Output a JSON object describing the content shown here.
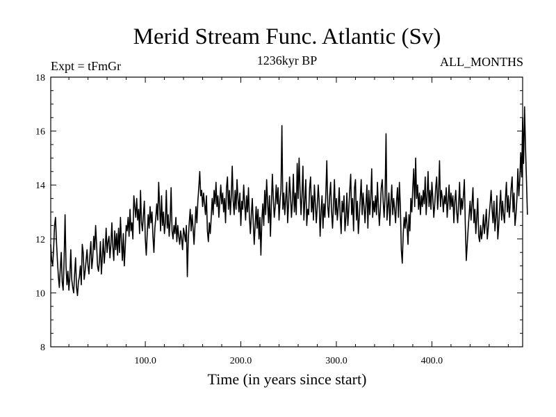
{
  "chart_data": {
    "type": "line",
    "title": "Merid Stream Func. Atlantic (Sv)",
    "subtitle_left": "Expt = tFmGr",
    "subtitle_center": "1236kyr BP",
    "subtitle_right": "ALL_MONTHS",
    "xlabel": "Time (in years since start)",
    "ylabel": "",
    "xlim": [
      1,
      495
    ],
    "ylim": [
      8,
      18
    ],
    "x_ticks": [
      {
        "value": 100,
        "label": "100.0"
      },
      {
        "value": 200,
        "label": "200.0"
      },
      {
        "value": 300,
        "label": "300.0"
      },
      {
        "value": 400,
        "label": "400.0"
      }
    ],
    "y_ticks": [
      {
        "value": 8,
        "label": "8"
      },
      {
        "value": 10,
        "label": "10"
      },
      {
        "value": 12,
        "label": "12"
      },
      {
        "value": 14,
        "label": "14"
      },
      {
        "value": 16,
        "label": "16"
      },
      {
        "value": 18,
        "label": "18"
      }
    ],
    "series": [
      {
        "name": "Merid Stream Func. Atlantic",
        "color": "#000000",
        "x_start": 1,
        "x_step": 1,
        "values": [
          11.8,
          11.2,
          11.0,
          11.6,
          12.5,
          12.8,
          11.9,
          11.2,
          10.6,
          10.2,
          10.9,
          11.5,
          10.4,
          10.1,
          11.2,
          12.9,
          11.0,
          10.3,
          10.8,
          10.1,
          10.6,
          11.6,
          10.5,
          10.2,
          10.0,
          10.7,
          11.3,
          10.2,
          9.9,
          10.4,
          10.6,
          11.0,
          10.3,
          11.8,
          11.5,
          10.5,
          10.8,
          11.2,
          11.6,
          11.0,
          10.7,
          11.4,
          11.9,
          10.9,
          11.3,
          12.1,
          11.6,
          12.5,
          11.8,
          11.0,
          10.8,
          11.2,
          11.9,
          10.7,
          11.3,
          12.0,
          11.1,
          11.6,
          12.4,
          11.5,
          11.9,
          12.1,
          11.3,
          11.8,
          12.6,
          11.7,
          11.2,
          12.3,
          11.6,
          12.2,
          11.4,
          12.4,
          11.5,
          12.8,
          11.9,
          11.2,
          12.2,
          11.0,
          11.7,
          12.5,
          12.3,
          12.8,
          12.1,
          13.1,
          12.3,
          12.6,
          12.0,
          13.6,
          13.2,
          12.8,
          13.5,
          12.7,
          13.1,
          12.2,
          13.8,
          12.6,
          12.3,
          12.9,
          13.4,
          12.0,
          11.4,
          12.2,
          12.9,
          12.4,
          13.2,
          12.6,
          13.0,
          12.1,
          11.5,
          12.4,
          12.8,
          13.3,
          12.7,
          14.1,
          13.2,
          12.3,
          13.6,
          12.5,
          13.0,
          12.2,
          12.6,
          13.8,
          12.4,
          12.9,
          12.1,
          12.7,
          13.9,
          12.3,
          12.0,
          12.5,
          12.2,
          12.8,
          11.9,
          12.5,
          12.1,
          11.8,
          12.3,
          12.0,
          11.6,
          12.4,
          12.2,
          11.9,
          12.5,
          10.6,
          12.0,
          12.6,
          13.1,
          12.3,
          12.9,
          12.4,
          11.8,
          12.5,
          13.2,
          12.6,
          13.4,
          13.9,
          14.5,
          13.6,
          13.8,
          13.2,
          13.7,
          13.3,
          12.9,
          13.6,
          12.3,
          11.9,
          12.6,
          12.2,
          12.8,
          13.5,
          12.9,
          13.8,
          13.3,
          14.1,
          13.2,
          13.6,
          12.8,
          13.4,
          14.0,
          13.3,
          13.7,
          13.0,
          13.5,
          12.6,
          13.9,
          14.3,
          13.1,
          13.8,
          12.9,
          13.6,
          14.7,
          13.4,
          12.9,
          13.8,
          13.1,
          14.2,
          13.5,
          13.0,
          13.7,
          12.5,
          13.4,
          13.1,
          14.0,
          13.3,
          12.7,
          13.6,
          13.0,
          13.9,
          12.8,
          12.2,
          12.9,
          13.5,
          12.6,
          11.8,
          12.5,
          13.2,
          12.4,
          13.1,
          12.0,
          12.8,
          11.4,
          12.7,
          13.3,
          12.5,
          13.8,
          12.9,
          14.2,
          13.4,
          12.6,
          13.6,
          12.1,
          13.3,
          14.4,
          13.5,
          12.8,
          13.2,
          14.0,
          13.3,
          13.9,
          12.7,
          13.4,
          13.8,
          16.2,
          13.1,
          13.7,
          12.9,
          13.5,
          14.1,
          12.6,
          13.3,
          14.3,
          13.6,
          12.8,
          13.4,
          14.4,
          13.0,
          13.7,
          12.9,
          14.8,
          13.5,
          15.0,
          13.8,
          12.9,
          13.6,
          14.7,
          12.7,
          13.4,
          14.2,
          12.5,
          13.1,
          12.9,
          13.9,
          14.3,
          13.0,
          13.6,
          12.7,
          14.0,
          13.3,
          12.6,
          13.2,
          14.0,
          13.4,
          12.1,
          13.0,
          13.6,
          12.4,
          13.3,
          12.8,
          13.7,
          14.9,
          13.2,
          12.8,
          13.6,
          14.1,
          13.0,
          12.4,
          13.3,
          14.2,
          12.9,
          13.5,
          12.7,
          13.2,
          13.9,
          12.9,
          12.2,
          13.4,
          13.0,
          13.6,
          12.3,
          12.8,
          13.7,
          12.5,
          13.1,
          13.8,
          14.4,
          12.9,
          13.5,
          12.3,
          13.9,
          14.2,
          12.7,
          13.4,
          12.2,
          12.8,
          13.5,
          14.2,
          12.9,
          13.7,
          13.2,
          12.6,
          13.3,
          14.0,
          12.4,
          13.8,
          12.9,
          13.5,
          14.6,
          12.8,
          13.4,
          13.0,
          13.6,
          12.9,
          14.1,
          13.2,
          12.5,
          13.1,
          13.9,
          14.2,
          13.4,
          12.8,
          13.6,
          15.9,
          12.7,
          13.2,
          13.7,
          12.5,
          13.3,
          14.0,
          12.9,
          13.5,
          13.1,
          12.6,
          13.4,
          13.9,
          12.8,
          14.1,
          13.2,
          11.6,
          11.1,
          12.2,
          12.8,
          12.4,
          13.0,
          12.5,
          11.8,
          12.9,
          12.3,
          13.5,
          13.0,
          13.9,
          14.6,
          13.2,
          15.0,
          13.5,
          14.0,
          13.1,
          13.7,
          12.9,
          13.6,
          13.2,
          13.8,
          13.3,
          14.3,
          12.9,
          13.6,
          14.5,
          13.2,
          13.8,
          13.1,
          14.1,
          13.5,
          12.8,
          13.3,
          13.9,
          14.3,
          13.1,
          13.7,
          14.9,
          13.2,
          13.8,
          13.5,
          13.0,
          13.6,
          13.3,
          13.9,
          12.8,
          13.4,
          14.0,
          13.1,
          13.7,
          13.2,
          13.6,
          12.6,
          13.4,
          13.8,
          13.0,
          12.6,
          13.3,
          14.1,
          12.9,
          13.5,
          13.1,
          13.6,
          14.2,
          12.5,
          11.2,
          11.8,
          12.4,
          12.9,
          13.4,
          12.7,
          13.3,
          13.9,
          12.6,
          13.1,
          12.2,
          12.8,
          13.5,
          12.1,
          11.9,
          12.5,
          12.0,
          12.3,
          12.9,
          12.2,
          12.6,
          13.1,
          12.0,
          12.4,
          12.9,
          13.3,
          13.8,
          13.1,
          12.6,
          13.4,
          12.3,
          12.8,
          13.6,
          12.0,
          12.5,
          13.2,
          13.8,
          12.7,
          13.4,
          12.9,
          12.6,
          13.5,
          14.1,
          13.0,
          13.6,
          12.8,
          13.3,
          13.9,
          14.3,
          13.0,
          13.7,
          12.5,
          12.9,
          13.5,
          14.6,
          13.6,
          14.2,
          15.2,
          14.3,
          16.5,
          14.8,
          16.9,
          15.4,
          14.2,
          12.9
        ]
      }
    ]
  }
}
